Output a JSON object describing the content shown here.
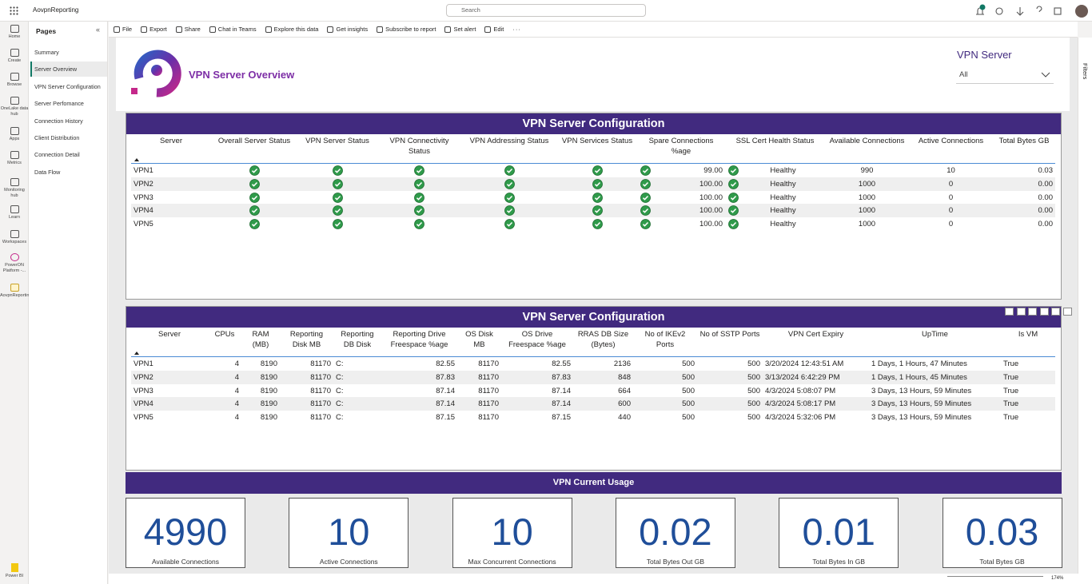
{
  "top_bar": {
    "app_name": "AovpnReporting",
    "search_placeholder": "Search"
  },
  "left_nav": {
    "items": [
      "Home",
      "Create",
      "Browse",
      "OneLake data hub",
      "Apps",
      "Metrics",
      "Monitoring hub",
      "Learn",
      "Workspaces",
      "PowerON Platform -...",
      "AovpnReporting"
    ],
    "product": "Power BI"
  },
  "pages_pane": {
    "title": "Pages",
    "pages": [
      "Summary",
      "Server Overview",
      "VPN Server Configuration",
      "Server Perfomance",
      "Connection History",
      "Client Distribution",
      "Connection Detail",
      "Data Flow"
    ]
  },
  "toolbar": {
    "items": [
      "File",
      "Export",
      "Share",
      "Chat in Teams",
      "Explore this data",
      "Get insights",
      "Subscribe to report",
      "Set alert",
      "Edit"
    ]
  },
  "report": {
    "title": "VPN Server Overview",
    "slicer": {
      "label": "VPN Server",
      "value": "All"
    },
    "config_table": {
      "title": "VPN Server Configuration",
      "headers": [
        "Server",
        "Overall Server Status",
        "VPN Server Status",
        "VPN Connectivity Status",
        "VPN Addressing Status",
        "VPN Services Status",
        "Spare Connections %age",
        "SSL Cert Health Status",
        "Available Connections",
        "Active Connections",
        "Total Bytes GB"
      ],
      "rows": [
        {
          "server": "VPN1",
          "spare": "99.00",
          "ssl": "Healthy",
          "available": "990",
          "active": "10",
          "bytes": "0.03"
        },
        {
          "server": "VPN2",
          "spare": "100.00",
          "ssl": "Healthy",
          "available": "1000",
          "active": "0",
          "bytes": "0.00"
        },
        {
          "server": "VPN3",
          "spare": "100.00",
          "ssl": "Healthy",
          "available": "1000",
          "active": "0",
          "bytes": "0.00"
        },
        {
          "server": "VPN4",
          "spare": "100.00",
          "ssl": "Healthy",
          "available": "1000",
          "active": "0",
          "bytes": "0.00"
        },
        {
          "server": "VPN5",
          "spare": "100.00",
          "ssl": "Healthy",
          "available": "1000",
          "active": "0",
          "bytes": "0.00"
        }
      ]
    },
    "detail_table": {
      "title": "VPN Server Configuration",
      "headers": [
        "Server",
        "CPUs",
        "RAM (MB)",
        "Reporting Disk MB",
        "Reporting DB Disk",
        "Reporting Drive Freespace %age",
        "OS Disk MB",
        "OS Drive Freespace %age",
        "RRAS DB Size (Bytes)",
        "No of IKEv2 Ports",
        "No of SSTP Ports",
        "VPN Cert Expiry",
        "UpTime",
        "Is VM"
      ],
      "rows": [
        [
          "VPN1",
          "4",
          "8190",
          "81170",
          "C:",
          "82.55",
          "81170",
          "82.55",
          "2136",
          "500",
          "500",
          "3/20/2024 12:43:51 AM",
          "1 Days, 1 Hours, 47 Minutes",
          "True"
        ],
        [
          "VPN2",
          "4",
          "8190",
          "81170",
          "C:",
          "87.83",
          "81170",
          "87.83",
          "848",
          "500",
          "500",
          "3/13/2024 6:42:29 PM",
          "1 Days, 1 Hours, 45 Minutes",
          "True"
        ],
        [
          "VPN3",
          "4",
          "8190",
          "81170",
          "C:",
          "87.14",
          "81170",
          "87.14",
          "664",
          "500",
          "500",
          "4/3/2024 5:08:07 PM",
          "3 Days, 13 Hours, 59 Minutes",
          "True"
        ],
        [
          "VPN4",
          "4",
          "8190",
          "81170",
          "C:",
          "87.14",
          "81170",
          "87.14",
          "600",
          "500",
          "500",
          "4/3/2024 5:08:17 PM",
          "3 Days, 13 Hours, 59 Minutes",
          "True"
        ],
        [
          "VPN5",
          "4",
          "8190",
          "81170",
          "C:",
          "87.15",
          "81170",
          "87.15",
          "440",
          "500",
          "500",
          "4/3/2024 5:32:06 PM",
          "3 Days, 13 Hours, 59 Minutes",
          "True"
        ]
      ]
    },
    "usage": {
      "title": "VPN Current Usage",
      "cards": [
        {
          "value": "4990",
          "label": "Available Connections"
        },
        {
          "value": "10",
          "label": "Active Connections"
        },
        {
          "value": "10",
          "label": "Max Concurrent Connections"
        },
        {
          "value": "0.02",
          "label": "Total Bytes Out GB"
        },
        {
          "value": "0.01",
          "label": "Total Bytes In GB"
        },
        {
          "value": "0.03",
          "label": "Total Bytes GB"
        }
      ]
    }
  },
  "filters_pane": {
    "label": "Filters"
  },
  "status_bar": {
    "zoom": "174%"
  }
}
